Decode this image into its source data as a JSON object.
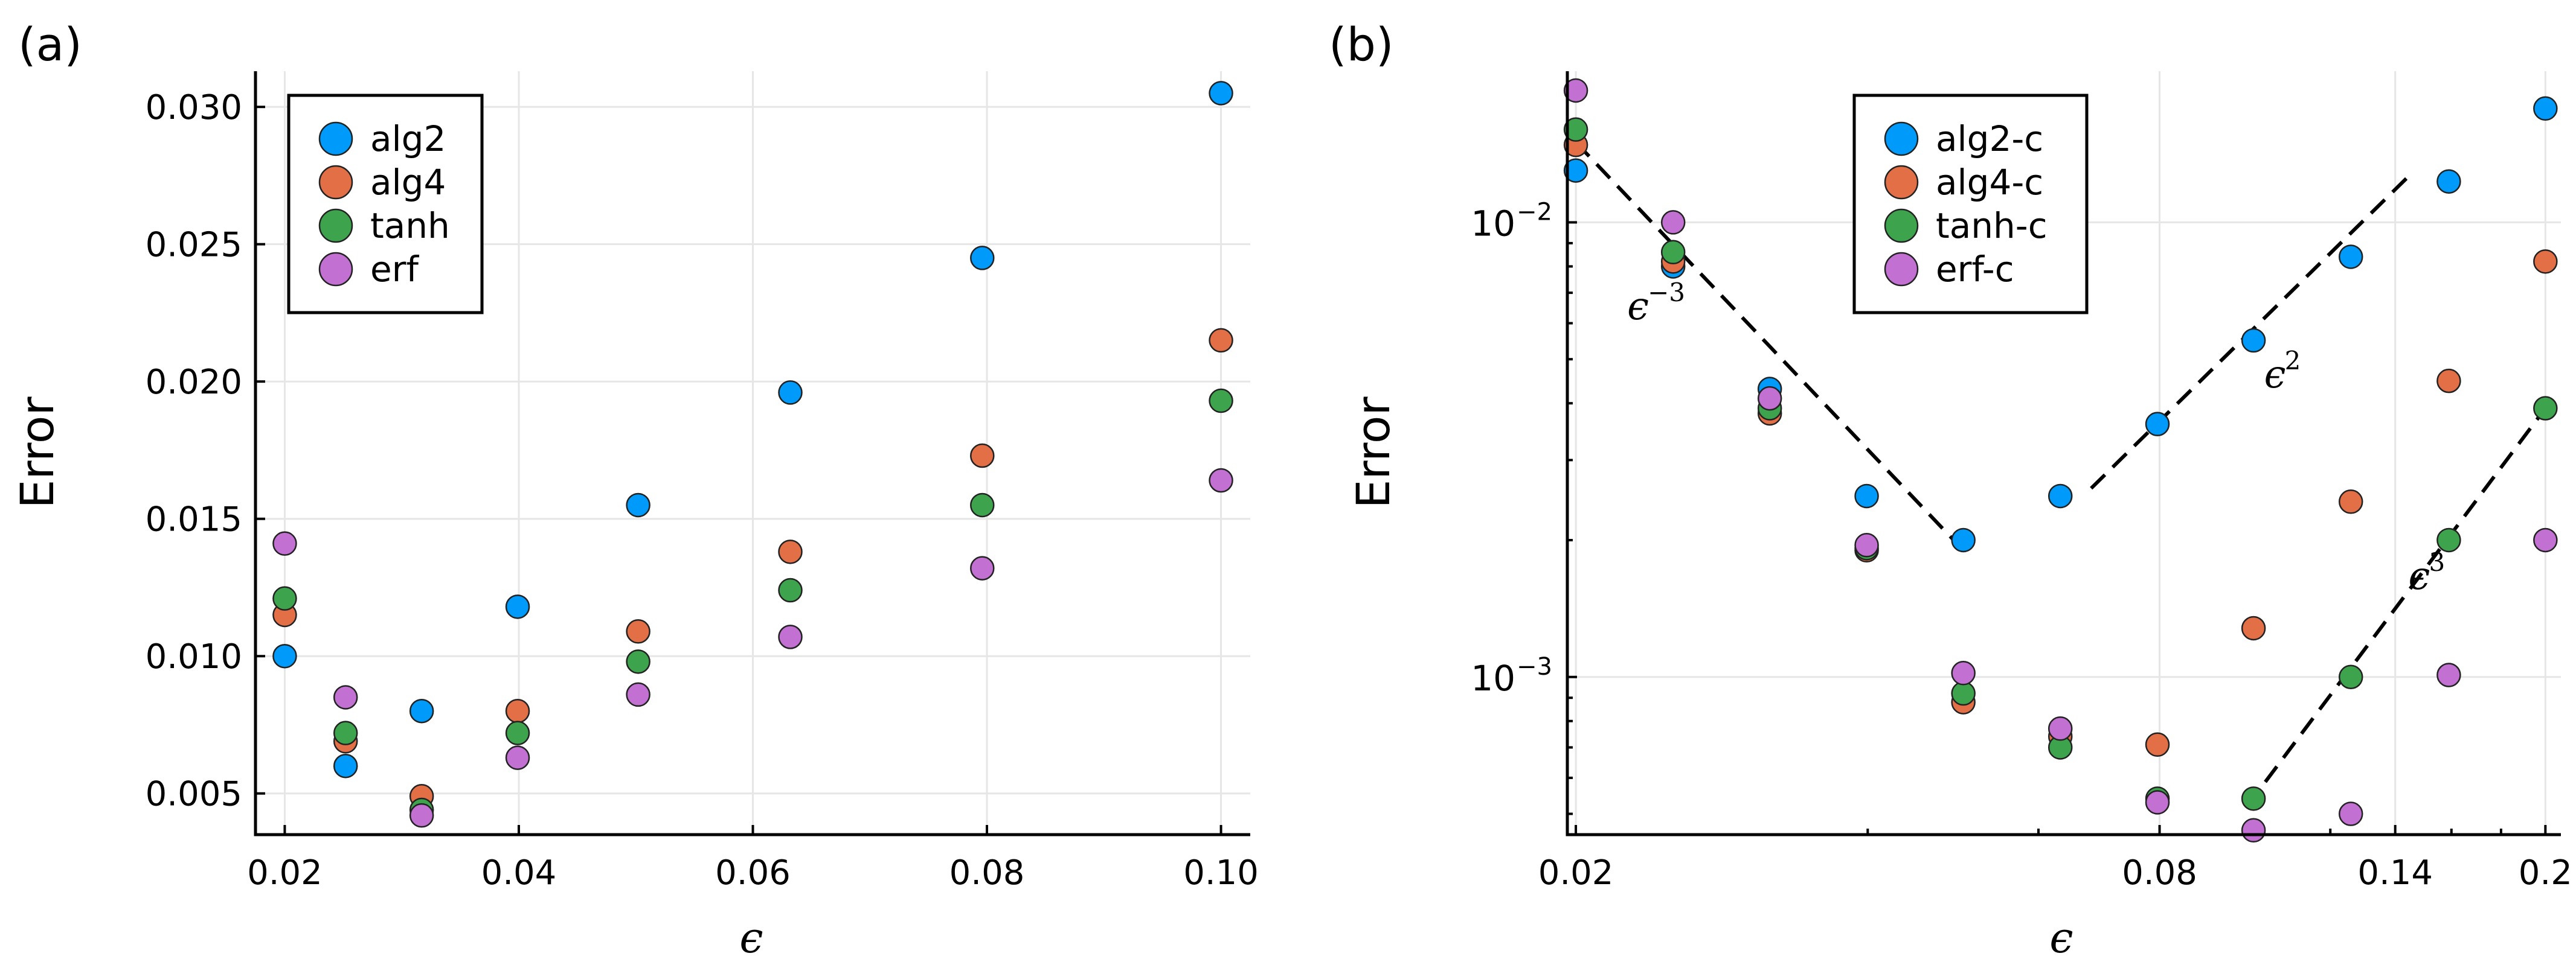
{
  "colors": {
    "alg2": "#009AFA",
    "alg4": "#E26F46",
    "tanh": "#3DA44D",
    "erf": "#C271D2"
  },
  "chart_data": [
    {
      "type": "scatter",
      "panel_label": "(a)",
      "xlabel": "ϵ",
      "ylabel": "Error",
      "xscale": "linear",
      "yscale": "linear",
      "xlim": [
        0.0175,
        0.1025
      ],
      "ylim": [
        0.0035,
        0.0313
      ],
      "xticks": [
        0.02,
        0.04,
        0.06,
        0.08,
        0.1
      ],
      "xtick_labels": [
        "0.02",
        "0.04",
        "0.06",
        "0.08",
        "0.10"
      ],
      "yticks": [
        0.005,
        0.01,
        0.015,
        0.02,
        0.025,
        0.03
      ],
      "ytick_labels": [
        "0.005",
        "0.010",
        "0.015",
        "0.020",
        "0.025",
        "0.030"
      ],
      "grid": true,
      "legend_position": "top-left",
      "x": [
        0.02,
        0.0252,
        0.0317,
        0.0399,
        0.0502,
        0.0632,
        0.0796,
        0.1
      ],
      "series": [
        {
          "name": "alg2",
          "color_key": "alg2",
          "values": [
            0.01,
            0.006,
            0.008,
            0.0118,
            0.0155,
            0.0196,
            0.0245,
            0.0305
          ]
        },
        {
          "name": "alg4",
          "color_key": "alg4",
          "values": [
            0.0115,
            0.0069,
            0.0049,
            0.008,
            0.0109,
            0.0138,
            0.0173,
            0.0215
          ]
        },
        {
          "name": "tanh",
          "color_key": "tanh",
          "values": [
            0.0121,
            0.0072,
            0.0044,
            0.0072,
            0.0098,
            0.0124,
            0.0155,
            0.0193
          ]
        },
        {
          "name": "erf",
          "color_key": "erf",
          "values": [
            0.0141,
            0.0085,
            0.0042,
            0.0063,
            0.0086,
            0.0107,
            0.0132,
            0.0164
          ]
        }
      ]
    },
    {
      "type": "scatter",
      "panel_label": "(b)",
      "xlabel": "ϵ",
      "ylabel": "Error",
      "xscale": "log",
      "yscale": "log",
      "xlim": [
        0.0196,
        0.2075
      ],
      "ylim": [
        0.00045,
        0.0215
      ],
      "xticks": [
        0.02,
        0.08,
        0.14,
        0.2
      ],
      "xtick_labels": [
        "0.02",
        "0.08",
        "0.14",
        "0.2"
      ],
      "x_minor_ticks": [
        0.04,
        0.06,
        0.1,
        0.12,
        0.16,
        0.18
      ],
      "yticks": [
        0.001,
        0.01
      ],
      "ytick_labels": [
        {
          "base": "10",
          "exp": "−3"
        },
        {
          "base": "10",
          "exp": "−2"
        }
      ],
      "grid": true,
      "legend_position": "top-center",
      "x": [
        0.02,
        0.0252,
        0.0317,
        0.0399,
        0.0502,
        0.0632,
        0.0796,
        0.1,
        0.126,
        0.159,
        0.2
      ],
      "series": [
        {
          "name": "alg2-c",
          "color_key": "alg2",
          "values": [
            0.013,
            0.008,
            0.0043,
            0.0025,
            0.002,
            0.0025,
            0.0036,
            0.0055,
            0.0084,
            0.0123,
            0.0178
          ]
        },
        {
          "name": "alg4-c",
          "color_key": "alg4",
          "values": [
            0.0148,
            0.0082,
            0.0038,
            0.0019,
            0.00088,
            0.00074,
            0.00071,
            0.00128,
            0.00243,
            0.00448,
            0.0082
          ]
        },
        {
          "name": "tanh-c",
          "color_key": "tanh",
          "values": [
            0.016,
            0.0086,
            0.0039,
            0.00192,
            0.00092,
            0.0007,
            0.00054,
            0.00054,
            0.001,
            0.002,
            0.0039
          ]
        },
        {
          "name": "erf-c",
          "color_key": "erf",
          "values": [
            0.0195,
            0.01,
            0.0041,
            0.00195,
            0.00102,
            0.00077,
            0.00053,
            0.00046,
            0.0005,
            0.00101,
            0.002
          ]
        }
      ],
      "reference_lines": [
        {
          "label": "ϵ",
          "exp": "−3",
          "x": [
            0.02,
            0.0502
          ],
          "y": [
            0.015,
            0.0019
          ]
        },
        {
          "label": "ϵ",
          "exp": "2",
          "x": [
            0.068,
            0.146
          ],
          "y": [
            0.0026,
            0.0129
          ]
        },
        {
          "label": "ϵ",
          "exp": "3",
          "x": [
            0.0985,
            0.2
          ],
          "y": [
            0.00052,
            0.0039
          ]
        }
      ]
    }
  ]
}
